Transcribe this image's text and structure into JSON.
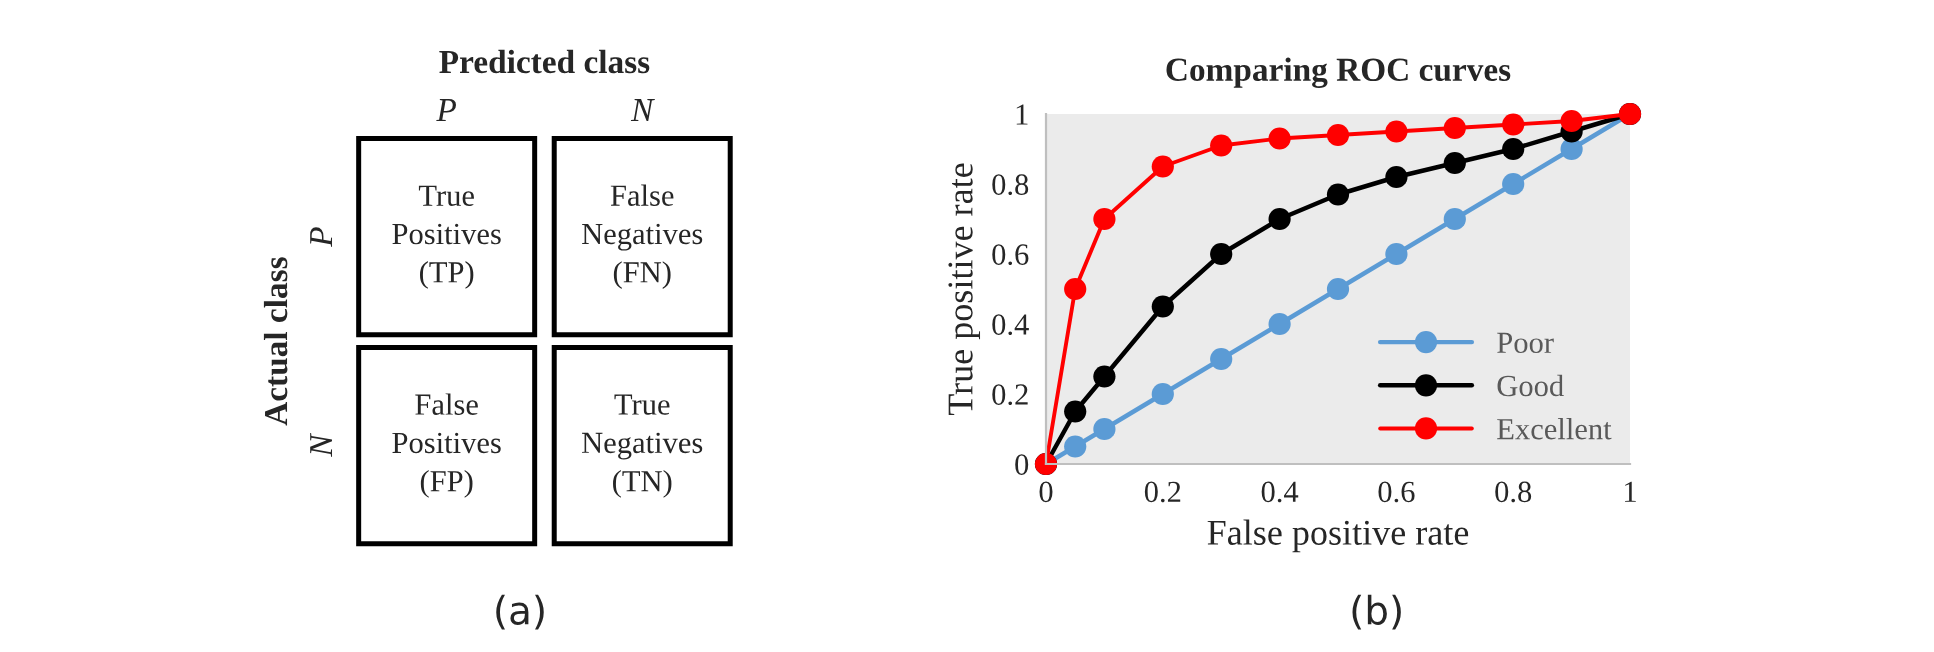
{
  "chart_data": [
    {
      "type": "other",
      "title": "Predicted class",
      "ylabel": "Actual class",
      "categories": [
        "P",
        "N"
      ],
      "y_categories": [
        "P",
        "N"
      ],
      "cell_labels": [
        [
          "True\nPositives\n(TP)",
          "False\nNegatives\n(FN)"
        ],
        [
          "False\nPositives\n(FP)",
          "True\nNegatives\n(TN)"
        ]
      ],
      "annotations": [
        "(a)"
      ]
    },
    {
      "type": "line",
      "title": "Comparing ROC curves",
      "xlabel": "False positive rate",
      "ylabel": "True positive rate",
      "x": [
        0,
        0.05,
        0.1,
        0.2,
        0.3,
        0.4,
        0.5,
        0.6,
        0.7,
        0.8,
        0.9,
        1
      ],
      "series": [
        {
          "name": "Poor",
          "color": "#5b9bd5",
          "values": [
            0,
            0.05,
            0.1,
            0.2,
            0.3,
            0.4,
            0.5,
            0.6,
            0.7,
            0.8,
            0.9,
            1
          ]
        },
        {
          "name": "Good",
          "color": "#000000",
          "values": [
            0,
            0.15,
            0.25,
            0.45,
            0.6,
            0.7,
            0.77,
            0.82,
            0.86,
            0.9,
            0.95,
            1
          ]
        },
        {
          "name": "Excellent",
          "color": "#ff0000",
          "values": [
            0,
            0.5,
            0.7,
            0.85,
            0.91,
            0.93,
            0.94,
            0.95,
            0.96,
            0.97,
            0.98,
            1
          ]
        }
      ],
      "xlim": [
        0,
        1
      ],
      "ylim": [
        0,
        1
      ],
      "xticks": [
        0,
        0.2,
        0.4,
        0.6,
        0.8,
        1
      ],
      "yticks": [
        0,
        0.2,
        0.4,
        0.6,
        0.8,
        1
      ],
      "grid": false,
      "legend": "bottom right",
      "marker": "circle",
      "line_style": "solid",
      "annotations": [
        "(b)"
      ]
    }
  ]
}
